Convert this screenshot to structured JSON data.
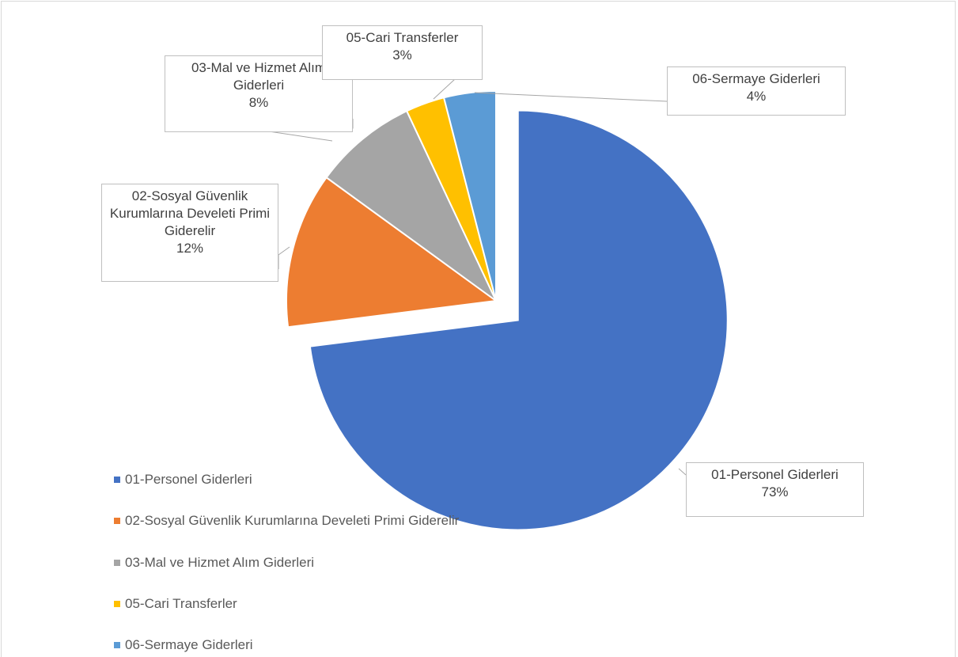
{
  "chart_data": {
    "type": "pie",
    "categories": [
      "01-Personel Giderleri",
      "02-Sosyal Güvenlik Kurumlarına Develeti Primi Giderelir",
      "03-Mal ve Hizmet Alım Giderleri",
      "05-Cari Transferler",
      "06-Sermaye Giderleri"
    ],
    "values": [
      73,
      12,
      8,
      3,
      4
    ],
    "value_labels": [
      "73%",
      "12%",
      "8%",
      "3%",
      "4%"
    ],
    "colors": [
      "#4472c4",
      "#ed7d31",
      "#a5a5a5",
      "#ffc000",
      "#5b9bd5"
    ],
    "legend": "left"
  }
}
